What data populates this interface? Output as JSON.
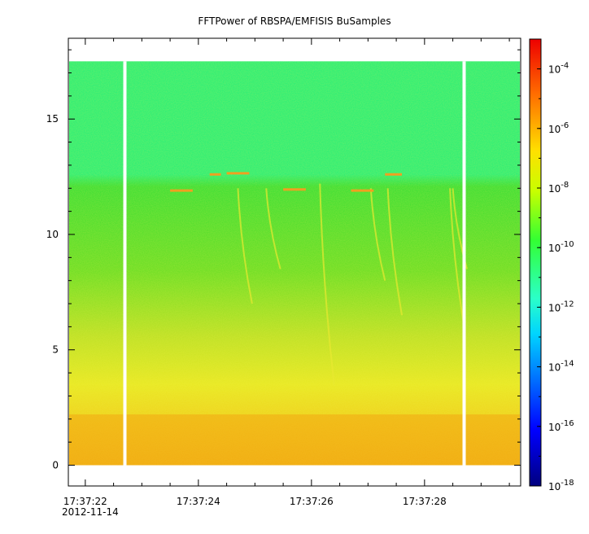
{
  "chart_data": {
    "type": "heatmap",
    "title": "FFTPower of RBSPA/EMFISIS  BuSamples",
    "xlabel": "",
    "ylabel": "",
    "zlabel": "",
    "x_tick_labels": [
      "17:37:22",
      "17:37:24",
      "17:37:26",
      "17:37:28"
    ],
    "x_sub_label": "2012-11-14",
    "x_tick_seconds": [
      22,
      24,
      26,
      28
    ],
    "x_range_seconds": [
      21.7,
      29.7
    ],
    "y_ticks": [
      0,
      5,
      10,
      15
    ],
    "y_tick_labels": [
      "0",
      "5",
      "10",
      "15"
    ],
    "ylim": [
      -0.9,
      18.5
    ],
    "data_ymax": 17.5,
    "colorbar": {
      "scale": "log",
      "range": [
        1e-18,
        0.001
      ],
      "ticks": [
        {
          "mantissa": "10",
          "exponent": "-4",
          "value": 0.0001
        },
        {
          "mantissa": "10",
          "exponent": "-6",
          "value": 1e-06
        },
        {
          "mantissa": "10",
          "exponent": "-8",
          "value": 1e-08
        },
        {
          "mantissa": "10",
          "exponent": "-10",
          "value": 1e-10
        },
        {
          "mantissa": "10",
          "exponent": "-12",
          "value": 1e-12
        },
        {
          "mantissa": "10",
          "exponent": "-14",
          "value": 1e-14
        },
        {
          "mantissa": "10",
          "exponent": "-16",
          "value": 1e-16
        },
        {
          "mantissa": "10",
          "exponent": "-18",
          "value": 1e-18
        }
      ]
    },
    "data_gaps_seconds": [
      22.7,
      28.7
    ],
    "colors": {
      "background": "#ffffff",
      "high_freq_band": "#22ee77",
      "mid_band": "#55e030",
      "low_band": "#e8e820",
      "base_band": "#f0b010",
      "gap": "#ffffff"
    }
  }
}
